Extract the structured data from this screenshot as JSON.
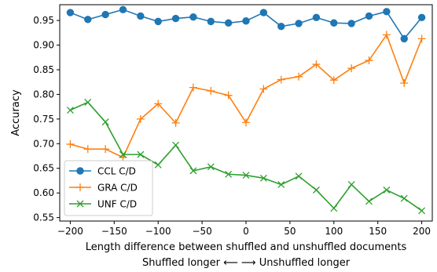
{
  "chart_data": {
    "type": "line",
    "xlabel": "Length difference between shuffled and unshuffled documents",
    "xlabel2": "Shuffled longer ⟵   ⟶ Unshuffled longer",
    "ylabel": "Accuracy",
    "xlim": [
      -212,
      212
    ],
    "ylim": [
      0.543,
      0.982
    ],
    "xticks": [
      -200,
      -150,
      -100,
      -50,
      0,
      50,
      100,
      150,
      200
    ],
    "yticks": [
      0.55,
      0.6,
      0.65,
      0.7,
      0.75,
      0.8,
      0.85,
      0.9,
      0.95
    ],
    "ytick_labels": [
      "0.55",
      "0.60",
      "0.65",
      "0.70",
      "0.75",
      "0.80",
      "0.85",
      "0.90",
      "0.95"
    ],
    "grid": false,
    "legend_position": "lower-left",
    "x": [
      -200,
      -180,
      -160,
      -140,
      -120,
      -100,
      -80,
      -60,
      -40,
      -20,
      0,
      20,
      40,
      60,
      80,
      100,
      120,
      140,
      160,
      180,
      200
    ],
    "series": [
      {
        "name": "CCL C/D",
        "color": "#1f77b4",
        "marker": "circle",
        "values": [
          0.966,
          0.952,
          0.962,
          0.972,
          0.959,
          0.948,
          0.954,
          0.957,
          0.948,
          0.945,
          0.949,
          0.966,
          0.938,
          0.944,
          0.956,
          0.945,
          0.944,
          0.959,
          0.968,
          0.913,
          0.956
        ]
      },
      {
        "name": "GRA C/D",
        "color": "#ff7f0e",
        "marker": "plus",
        "values": [
          0.699,
          0.689,
          0.689,
          0.672,
          0.75,
          0.781,
          0.742,
          0.814,
          0.807,
          0.798,
          0.743,
          0.811,
          0.83,
          0.836,
          0.861,
          0.829,
          0.853,
          0.869,
          0.921,
          0.823,
          0.913
        ]
      },
      {
        "name": "UNF C/D",
        "color": "#2ca02c",
        "marker": "x",
        "values": [
          0.768,
          0.784,
          0.744,
          0.678,
          0.678,
          0.657,
          0.697,
          0.645,
          0.653,
          0.638,
          0.636,
          0.63,
          0.617,
          0.634,
          0.606,
          0.569,
          0.617,
          0.583,
          0.606,
          0.589,
          0.564
        ]
      }
    ]
  }
}
